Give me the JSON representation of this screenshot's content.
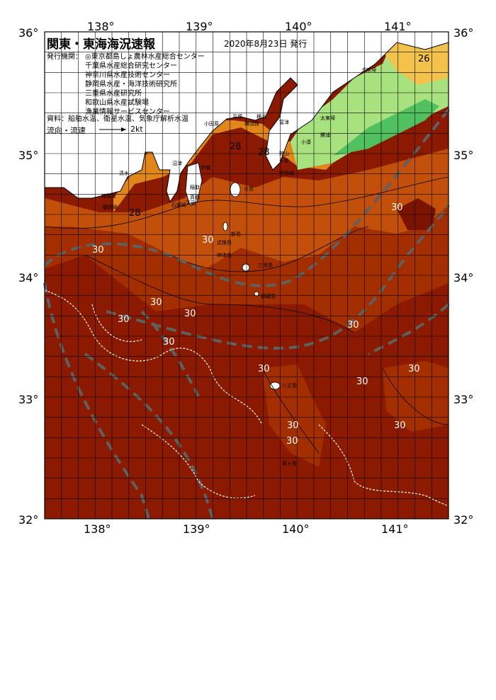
{
  "header": {
    "title": "関東・東海海況速報",
    "issue_date": "2020年8月23日 発行"
  },
  "publisher": {
    "label": "発行機関：",
    "agencies": [
      "◎東京都島しょ農林水産総合センター",
      "千葉県水産総合研究センター",
      "神奈川県水産技術センター",
      "静岡県水産・海洋技術研究所",
      "三重県水産研究所",
      "和歌山県水産試験場",
      "漁業情報サービスセンター"
    ]
  },
  "sources": "資料：船舶水温、衛星水温、気象庁解析水温",
  "legend": {
    "flow_label": "流向・流速",
    "scale_label": "2kt"
  },
  "axes": {
    "lon_labels": [
      "138°",
      "139°",
      "140°",
      "141°"
    ],
    "lat_labels": [
      "36°",
      "35°",
      "34°",
      "33°",
      "32°"
    ]
  },
  "place_names": [
    "犬吠埼",
    "太東埼",
    "勝浦",
    "小湊",
    "千倉",
    "館山",
    "野島崎",
    "富津",
    "平塚",
    "横須賀",
    "横浜",
    "小田原",
    "伊東",
    "稲取",
    "下田",
    "石廊崎",
    "沼津",
    "清水",
    "御前崎",
    "地頭方",
    "新島",
    "式根島",
    "神津島",
    "三宅島",
    "御蔵島",
    "八丈島",
    "青ヶ島",
    "真鶴",
    "大島"
  ],
  "contour_labels": [
    "26",
    "28",
    "28",
    "28",
    "30",
    "30",
    "30",
    "30",
    "30",
    "30",
    "30",
    "30",
    "30",
    "30",
    "30",
    "30",
    "30",
    "30"
  ],
  "colors": {
    "sea_warm": "#8b1a00",
    "sea_mid": "#b33a00",
    "sea_orange": "#d46a10",
    "sea_light": "#e8951e",
    "sea_yellow": "#f2c24a",
    "sea_green": "#8fe07a",
    "land": "#ffffff",
    "grid": "#000000",
    "current": "#606060"
  }
}
